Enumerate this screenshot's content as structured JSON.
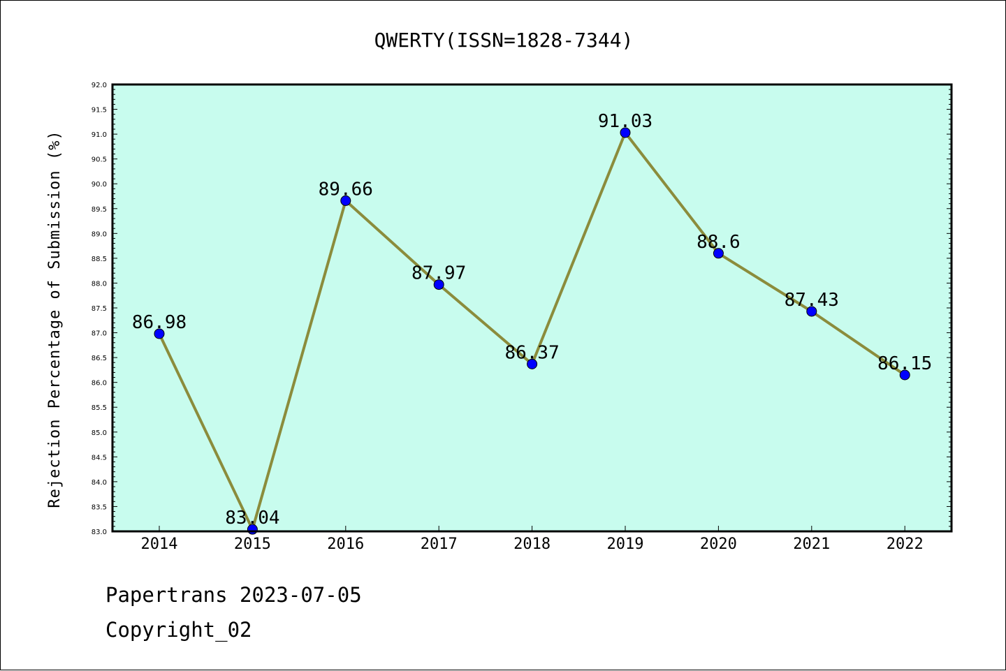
{
  "chart_data": {
    "type": "line",
    "title": "QWERTY(ISSN=1828-7344)",
    "xlabel": "",
    "ylabel": "Rejection Percentage of Submission (%)",
    "categories": [
      "2014",
      "2015",
      "2016",
      "2017",
      "2018",
      "2019",
      "2020",
      "2021",
      "2022"
    ],
    "series": [
      {
        "values": [
          86.98,
          83.04,
          89.66,
          87.97,
          86.37,
          91.03,
          88.6,
          87.43,
          86.15
        ],
        "labels": [
          "86.98",
          "83.04",
          "89.66",
          "87.97",
          "86.37",
          "91.03",
          "88.6",
          "87.43",
          "86.15"
        ]
      }
    ],
    "ylim": [
      83.0,
      92.0
    ],
    "yticks": [
      "83.0",
      "83.5",
      "84.0",
      "84.5",
      "85.0",
      "85.5",
      "86.0",
      "86.5",
      "87.0",
      "87.5",
      "88.0",
      "88.5",
      "89.0",
      "89.5",
      "90.0",
      "90.5",
      "91.0",
      "91.5",
      "92.0"
    ],
    "grid": false,
    "colors": {
      "plot_background": "#c8fcee",
      "line": "#8b8c3c",
      "marker": "#0000ff"
    }
  },
  "footer": {
    "line1": "Papertrans 2023-07-05",
    "line2": "Copyright_02"
  }
}
